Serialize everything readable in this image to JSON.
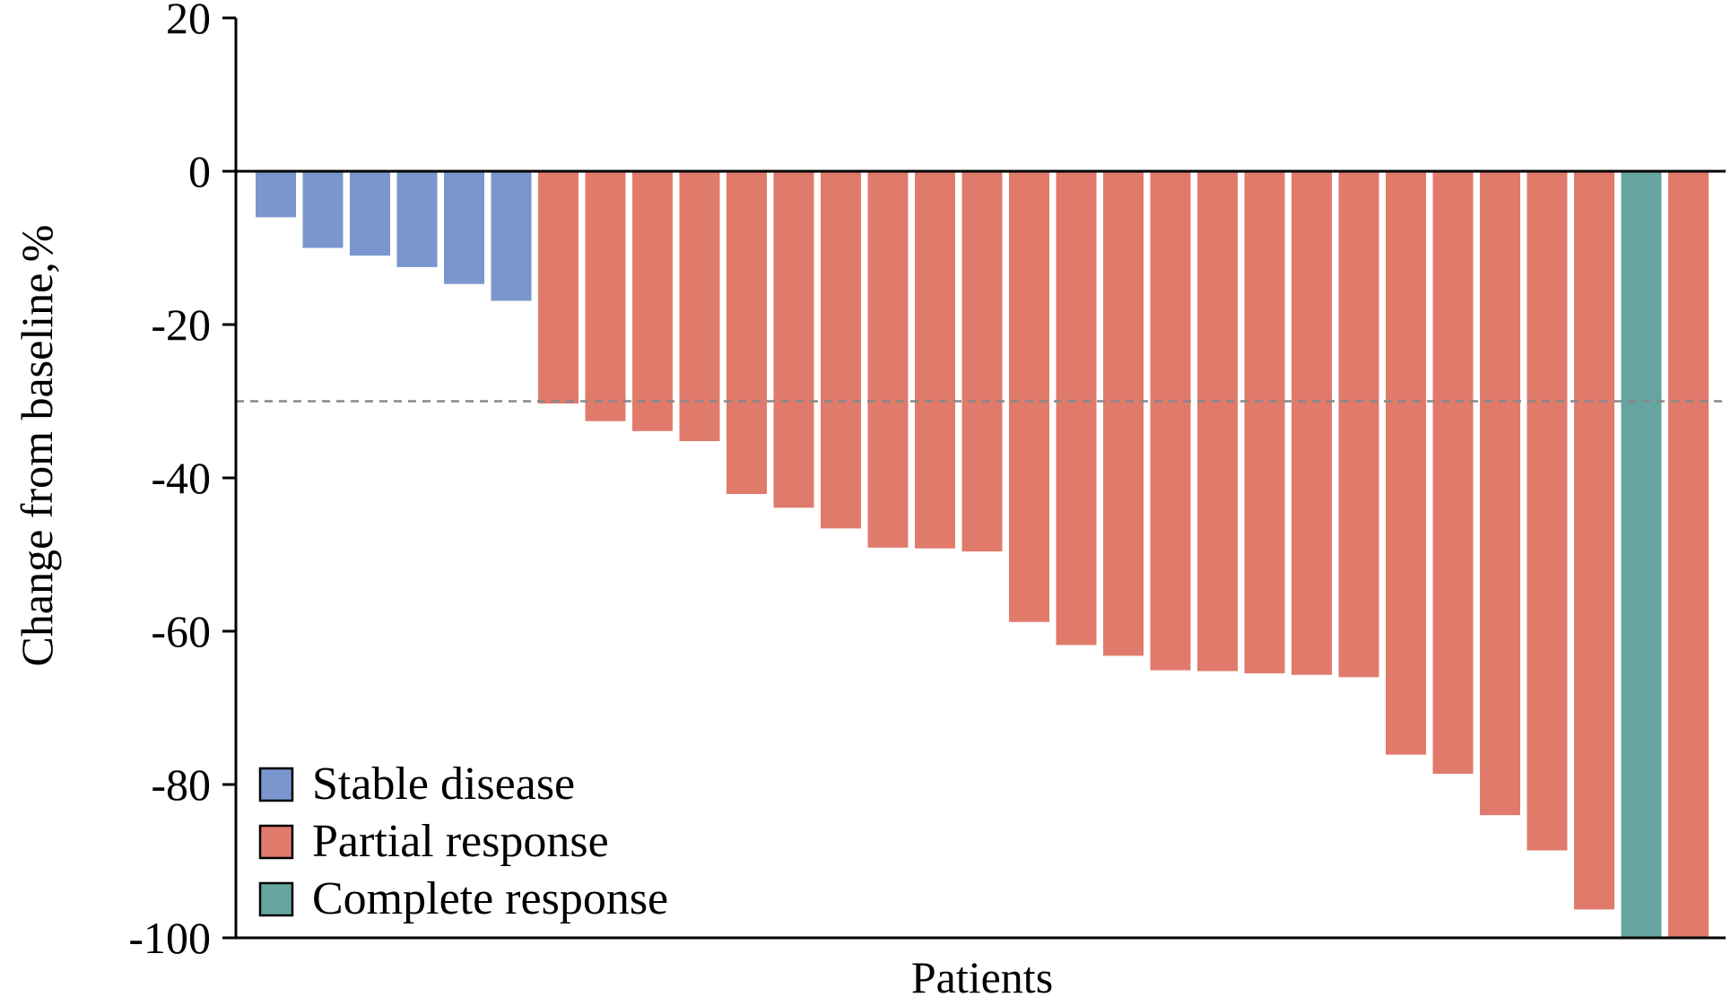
{
  "chart_data": {
    "type": "bar",
    "title": "",
    "xlabel": "Patients",
    "ylabel": "Change from baseline,%",
    "ylim": [
      -100,
      20
    ],
    "yticks": [
      20,
      0,
      -20,
      -40,
      -60,
      -80,
      -100
    ],
    "reference_line": {
      "value": -30,
      "style": "dashed"
    },
    "zero_line": 0,
    "grid": false,
    "legend_position": "bottom-left",
    "legend": [
      {
        "label": "Stable disease",
        "color": "#7b96cd"
      },
      {
        "label": "Partial response",
        "color": "#e07b6c"
      },
      {
        "label": "Complete response",
        "color": "#66a59f"
      }
    ],
    "bars": [
      {
        "value": -6,
        "category": "Stable disease"
      },
      {
        "value": -10,
        "category": "Stable disease"
      },
      {
        "value": -11,
        "category": "Stable disease"
      },
      {
        "value": -12.5,
        "category": "Stable disease"
      },
      {
        "value": -14.7,
        "category": "Stable disease"
      },
      {
        "value": -16.9,
        "category": "Stable disease"
      },
      {
        "value": -30.3,
        "category": "Partial response"
      },
      {
        "value": -32.6,
        "category": "Partial response"
      },
      {
        "value": -33.9,
        "category": "Partial response"
      },
      {
        "value": -35.2,
        "category": "Partial response"
      },
      {
        "value": -42.1,
        "category": "Partial response"
      },
      {
        "value": -43.9,
        "category": "Partial response"
      },
      {
        "value": -46.6,
        "category": "Partial response"
      },
      {
        "value": -49.1,
        "category": "Partial response"
      },
      {
        "value": -49.2,
        "category": "Partial response"
      },
      {
        "value": -49.6,
        "category": "Partial response"
      },
      {
        "value": -58.8,
        "category": "Partial response"
      },
      {
        "value": -61.8,
        "category": "Partial response"
      },
      {
        "value": -63.2,
        "category": "Partial response"
      },
      {
        "value": -65.1,
        "category": "Partial response"
      },
      {
        "value": -65.2,
        "category": "Partial response"
      },
      {
        "value": -65.5,
        "category": "Partial response"
      },
      {
        "value": -65.7,
        "category": "Partial response"
      },
      {
        "value": -66,
        "category": "Partial response"
      },
      {
        "value": -76.1,
        "category": "Partial response"
      },
      {
        "value": -78.6,
        "category": "Partial response"
      },
      {
        "value": -84,
        "category": "Partial response"
      },
      {
        "value": -88.6,
        "category": "Partial response"
      },
      {
        "value": -96.3,
        "category": "Partial response"
      },
      {
        "value": -100,
        "category": "Complete response"
      },
      {
        "value": -100,
        "category": "Partial response"
      }
    ]
  }
}
